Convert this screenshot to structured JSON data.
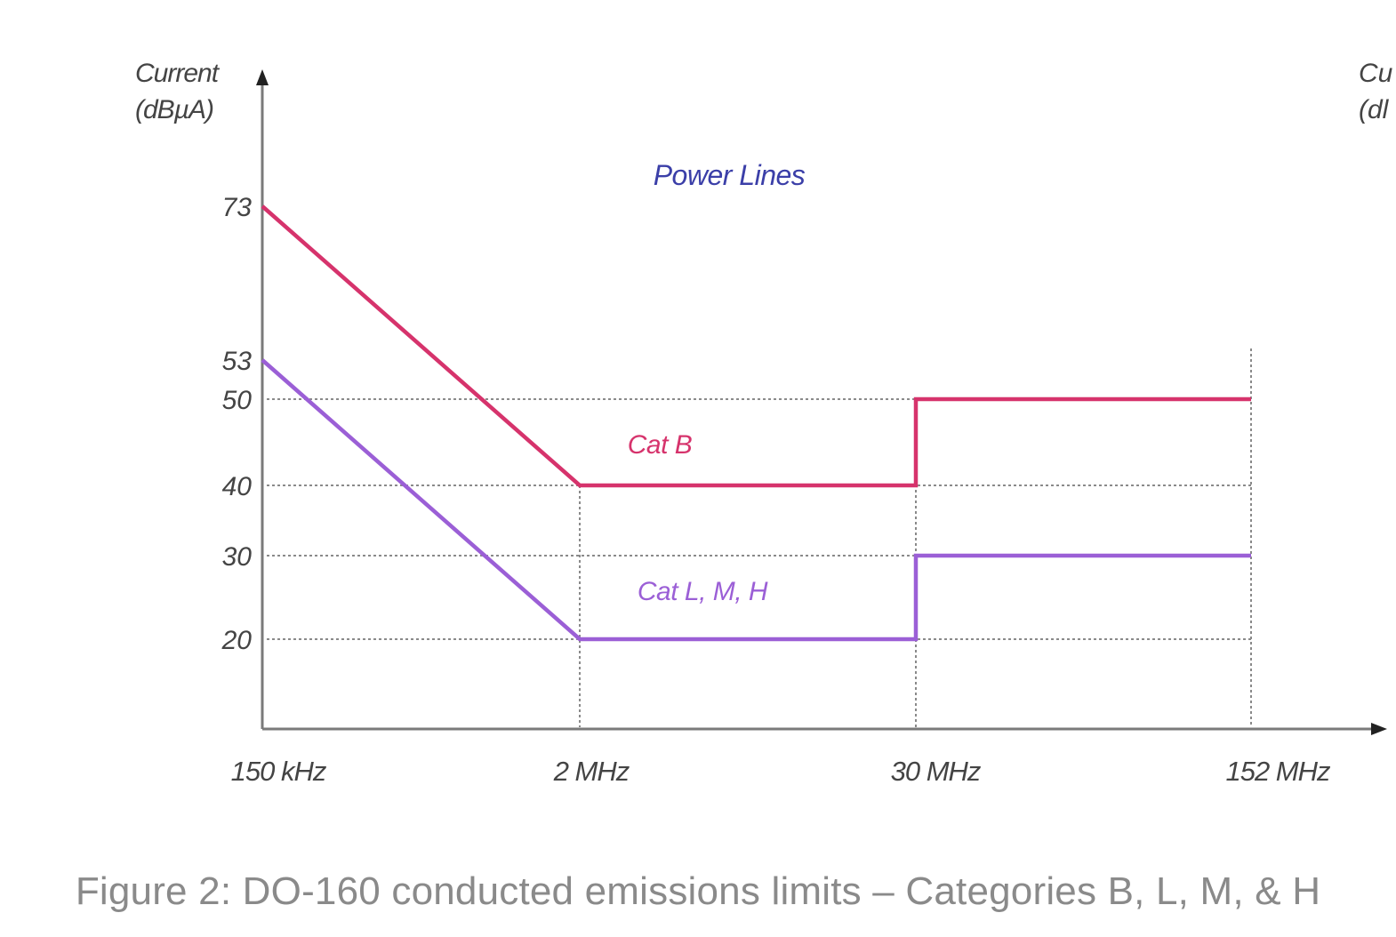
{
  "chart_data": {
    "type": "line",
    "title": "Power Lines",
    "ylabel_line1": "Current",
    "ylabel_line2": "(dBµA)",
    "right_ylabel_line1": "Cu",
    "right_ylabel_line2": "(dl",
    "xlabel": "",
    "x_ticks": [
      "150 kHz",
      "2 MHz",
      "30 MHz",
      "152 MHz"
    ],
    "y_ticks": [
      73,
      53,
      50,
      40,
      30,
      20
    ],
    "grid_y": [
      50,
      40,
      30,
      20
    ],
    "grid_x": [
      "2 MHz",
      "30 MHz",
      "152 MHz"
    ],
    "series": [
      {
        "name": "Cat B",
        "color": "#d6336c",
        "points": [
          {
            "x": "150 kHz",
            "y": 73
          },
          {
            "x": "2 MHz",
            "y": 40
          },
          {
            "x": "30 MHz",
            "y": 40
          },
          {
            "x": "30 MHz",
            "y": 50
          },
          {
            "x": "152 MHz",
            "y": 50
          }
        ]
      },
      {
        "name": "Cat L, M, H",
        "color": "#9b5fd6",
        "points": [
          {
            "x": "150 kHz",
            "y": 53
          },
          {
            "x": "2 MHz",
            "y": 20
          },
          {
            "x": "30 MHz",
            "y": 20
          },
          {
            "x": "30 MHz",
            "y": 30
          },
          {
            "x": "152 MHz",
            "y": 30
          }
        ]
      }
    ],
    "title_color": "#3b3fa8"
  },
  "caption": "Figure 2: DO-160 conducted emissions limits – Categories B, L, M, & H"
}
